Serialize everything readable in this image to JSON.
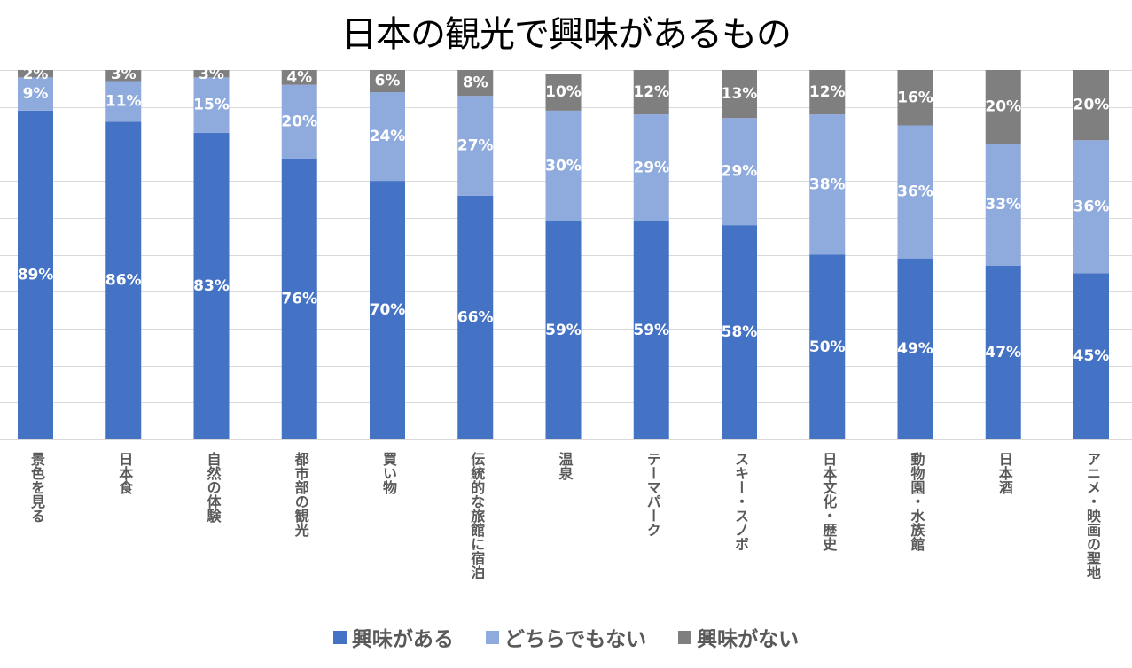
{
  "chart_data": {
    "type": "bar",
    "stacked": true,
    "title": "日本の観光で興味があるもの",
    "xlabel": "",
    "ylabel": "",
    "ylim": [
      0,
      100
    ],
    "y_unit": "%",
    "grid": true,
    "gridline_step": 10,
    "legend_position": "bottom",
    "categories": [
      "景色を見る",
      "日本食",
      "自然の体験",
      "都市部の観光",
      "買い物",
      "伝統的な旅館に宿泊",
      "温泉",
      "テーマパーク",
      "スキー・スノボ",
      "日本文化・歴史",
      "動物園・水族館",
      "日本酒",
      "アニメ・映画の聖地"
    ],
    "series": [
      {
        "name": "興味がある",
        "color": "#4472c4",
        "values": [
          89,
          86,
          83,
          76,
          70,
          66,
          59,
          59,
          58,
          50,
          49,
          47,
          45
        ]
      },
      {
        "name": "どちらでもない",
        "color": "#8faadc",
        "values": [
          9,
          11,
          15,
          20,
          24,
          27,
          30,
          29,
          29,
          38,
          36,
          33,
          36
        ]
      },
      {
        "name": "興味がない",
        "color": "#7f7f7f",
        "values": [
          2,
          3,
          3,
          4,
          6,
          8,
          10,
          12,
          13,
          12,
          16,
          20,
          20
        ]
      }
    ]
  }
}
